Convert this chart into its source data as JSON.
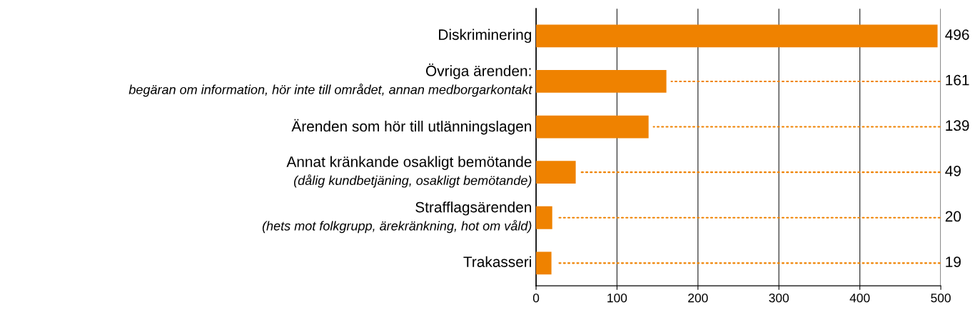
{
  "chart_data": {
    "type": "bar",
    "orientation": "horizontal",
    "categories": [
      "Diskriminering",
      "Övriga ärenden:\nbegäran om information, hör inte till området, annan medborgarkontakt",
      "Ärenden som hör till utlänningslagen",
      "Annat kränkande osakligt bemötande\n(dålig kundbetjäning, osakligt bemötande)",
      "Strafflagsärenden\n(hets mot folkgrupp, ärekränkning, hot om våld)",
      "Trakasseri"
    ],
    "values": [
      496,
      161,
      139,
      49,
      20,
      19
    ],
    "color": "#ef8200",
    "xlim": [
      0,
      500
    ],
    "xticks": [
      0,
      100,
      200,
      300,
      400,
      500
    ],
    "grid": "x",
    "annotations": [
      {
        "text": "496",
        "x": 496,
        "y": "Diskriminering"
      },
      {
        "text": "161",
        "x": 161,
        "y": "Övriga ärenden:\nbegäran om information, hör inte till området, annan medborgarkontakt"
      },
      {
        "text": "139",
        "x": 139,
        "y": "Ärenden som hör till utlänningslagen"
      },
      {
        "text": "49",
        "x": 49,
        "y": "Annat kränkande osakligt bemötande\n(dålig kundbetjäning, osakligt bemötande)"
      },
      {
        "text": "20",
        "x": 20,
        "y": "Strafflagsärenden\n(hets mot folkgrupp, ärekränkning, hot om våld)"
      },
      {
        "text": "19",
        "x": 19,
        "y": "Trakasseri"
      }
    ]
  }
}
